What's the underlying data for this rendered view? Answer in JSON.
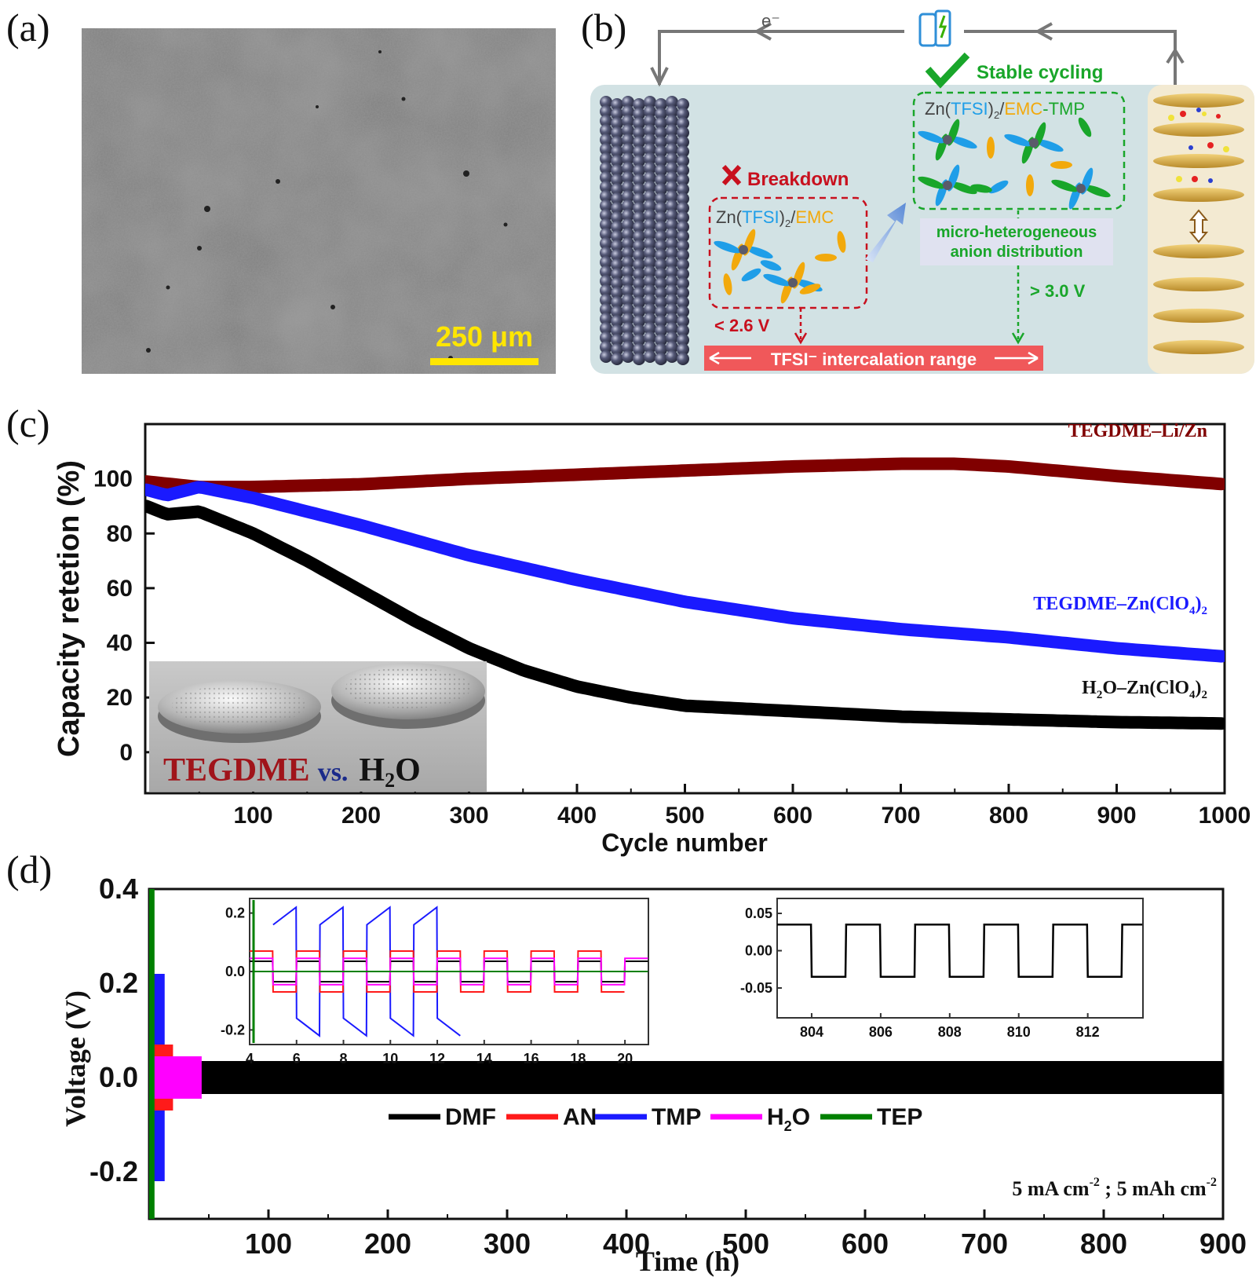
{
  "panels": {
    "a": {
      "label": "(a)",
      "scale_bar": "250 μm"
    },
    "b": {
      "label": "(b)",
      "electron": "e⁻",
      "stable_cycling": "Stable cycling",
      "breakdown": "Breakdown",
      "electrolyte_left": {
        "pre": "Zn(",
        "anion": "TFSI",
        "mid": ")",
        "sub": "2",
        "slash": "/",
        "solvent": "EMC"
      },
      "electrolyte_right": {
        "pre": "Zn(",
        "anion": "TFSI",
        "mid": ")",
        "sub": "2",
        "slash": "/",
        "solvent": "EMC",
        "suffix": "-TMP"
      },
      "micro_line1": "micro-heterogeneous",
      "micro_line2": "anion distribution",
      "v_low": "< 2.6 V",
      "v_high": "> 3.0 V",
      "range_text": "TFSI⁻ intercalation range"
    },
    "c": {
      "label": "(c)",
      "inset_text": {
        "a": "TEGDME",
        "vs": "vs.",
        "b": "H",
        "sub": "2",
        "c": "O"
      }
    },
    "d": {
      "label": "(d)",
      "condition": {
        "a": "5 mA cm",
        "sup1": "-2",
        "b": " ; 5 mAh cm",
        "sup2": "-2"
      }
    }
  },
  "chart_data": [
    {
      "id": "c",
      "type": "line",
      "xlabel": "Cycle number",
      "ylabel": "Capacity retetion (%)",
      "xlim": [
        0,
        1000
      ],
      "ylim": [
        -15,
        120
      ],
      "xticks": [
        100,
        200,
        300,
        400,
        500,
        600,
        700,
        800,
        900,
        1000
      ],
      "yticks": [
        0,
        20,
        40,
        60,
        80,
        100
      ],
      "series": [
        {
          "name": "TEGDME–Li/Zn",
          "color": "#800000",
          "x": [
            1,
            50,
            100,
            200,
            300,
            400,
            500,
            600,
            700,
            750,
            800,
            900,
            1000
          ],
          "y": [
            99,
            97,
            97,
            98,
            100,
            101.5,
            103,
            104.5,
            105.5,
            105.5,
            104.5,
            101,
            98
          ]
        },
        {
          "name": "TEGDME–Zn(ClO4)2",
          "color": "#1a1aff",
          "x": [
            1,
            20,
            50,
            100,
            200,
            300,
            400,
            500,
            600,
            700,
            800,
            900,
            1000
          ],
          "y": [
            96,
            94,
            97,
            93,
            83,
            72,
            63,
            55,
            49,
            45,
            42,
            38,
            35
          ]
        },
        {
          "name": "H2O–Zn(ClO4)2",
          "color": "#000000",
          "x": [
            1,
            20,
            50,
            100,
            150,
            200,
            250,
            300,
            350,
            400,
            450,
            500,
            600,
            700,
            800,
            900,
            1000
          ],
          "y": [
            90,
            87,
            88,
            80,
            70,
            59,
            48,
            38,
            30,
            24,
            20,
            17,
            15,
            13,
            12,
            11,
            10.5
          ]
        }
      ],
      "legend_labels": [
        {
          "text": "TEGDME–Li/Zn",
          "color": "#800000",
          "main": "TEGDME–Li/Zn",
          "sub": "",
          "tail": ""
        },
        {
          "text": "TEGDME–Zn(ClO4)2",
          "color": "#1a1aff",
          "main": "TEGDME–Zn(ClO",
          "sub": "4",
          "tail": ")"
        },
        {
          "text": "H2O–Zn(ClO4)2",
          "color": "#000000",
          "main": "H",
          "sub": "2",
          "tail": "O–Zn(ClO"
        }
      ]
    },
    {
      "id": "d",
      "type": "line",
      "xlabel": "Time (h)",
      "ylabel": "Voltage (V)",
      "xlim": [
        0,
        900
      ],
      "ylim": [
        -0.3,
        0.4
      ],
      "xticks": [
        100,
        200,
        300,
        400,
        500,
        600,
        700,
        800,
        900
      ],
      "yticks": [
        -0.2,
        0.0,
        0.2,
        0.4
      ],
      "ytick_labels": [
        "-0.2",
        "0.0",
        "0.2",
        "0.4"
      ],
      "legend": [
        "DMF",
        "AN",
        "TMP",
        "H2O",
        "TEP"
      ],
      "series": [
        {
          "name": "DMF",
          "color": "#000000",
          "x_range": [
            4,
            900
          ],
          "amplitude": 0.035
        },
        {
          "name": "AN",
          "color": "#ff1a1a",
          "x_range": [
            4,
            20
          ],
          "amplitude": 0.07
        },
        {
          "name": "TMP",
          "color": "#1a1aff",
          "x_range": [
            4,
            13
          ],
          "amplitude": 0.22
        },
        {
          "name": "H2O",
          "color": "#ff00ff",
          "x_range": [
            4,
            44
          ],
          "amplitude": 0.045
        },
        {
          "name": "TEP",
          "color": "#008000",
          "x_range": [
            0,
            4.5
          ],
          "amplitude": 0.4
        }
      ],
      "insets": [
        {
          "xlim": [
            4,
            21
          ],
          "ylim": [
            -0.25,
            0.25
          ],
          "xticks": [
            4,
            6,
            8,
            10,
            12,
            14,
            16,
            18,
            20
          ],
          "yticks": [
            0.2,
            0.0,
            -0.2
          ],
          "ytick_labels": [
            "0.2",
            "0.0",
            "-0.2"
          ]
        },
        {
          "xlim": [
            803,
            813.6
          ],
          "ylim": [
            -0.09,
            0.07
          ],
          "xticks": [
            804,
            806,
            808,
            810,
            812
          ],
          "yticks": [
            0.05,
            0.0,
            -0.05
          ],
          "ytick_labels": [
            "0.05",
            "0.00",
            "-0.05"
          ]
        }
      ]
    }
  ]
}
